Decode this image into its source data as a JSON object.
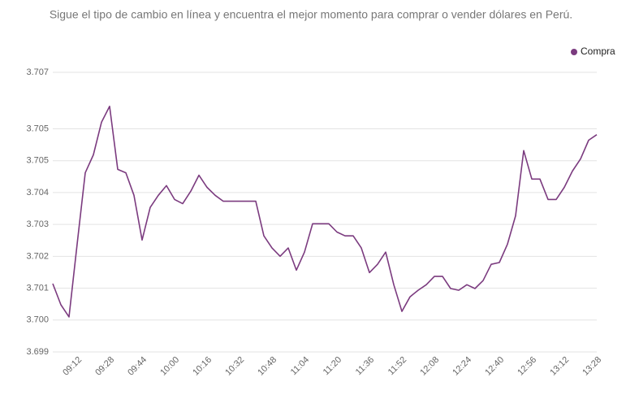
{
  "chart_data": {
    "type": "line",
    "subtitle": "Sigue el tipo de cambio en línea y encuentra el mejor momento para comprar o vender dólares en Perú.",
    "categories": [
      null,
      null,
      null,
      "09:12",
      null,
      null,
      null,
      "09:28",
      null,
      null,
      null,
      "09:44",
      null,
      null,
      null,
      "10:00",
      null,
      null,
      null,
      "10:16",
      null,
      null,
      null,
      "10:32",
      null,
      null,
      null,
      "10:48",
      null,
      null,
      null,
      "11:04",
      null,
      null,
      null,
      "11:20",
      null,
      null,
      null,
      "11:36",
      null,
      null,
      null,
      "11:52",
      null,
      null,
      null,
      "12:08",
      null,
      null,
      null,
      "12:24",
      null,
      null,
      null,
      "12:40",
      null,
      null,
      null,
      "12:56",
      null,
      null,
      null,
      "13:12",
      null,
      null,
      null,
      "13:28"
    ],
    "series": [
      {
        "name": "Compra",
        "color": "#7b3b7f",
        "values": [
          3.70097,
          3.70036,
          3.70001,
          3.70211,
          3.70417,
          3.70469,
          3.70563,
          3.70609,
          3.70427,
          3.70417,
          3.70352,
          3.70223,
          3.70317,
          3.70352,
          3.7038,
          3.7034,
          3.70328,
          3.70364,
          3.7041,
          3.70375,
          3.70352,
          3.70335,
          3.70335,
          3.70335,
          3.70335,
          3.70335,
          3.70235,
          3.702,
          3.70176,
          3.702,
          3.70136,
          3.70188,
          3.7027,
          3.7027,
          3.7027,
          3.70246,
          3.70235,
          3.70235,
          3.702,
          3.70129,
          3.70153,
          3.70188,
          3.70094,
          3.70017,
          3.70059,
          3.70078,
          3.70094,
          3.70118,
          3.70118,
          3.70083,
          3.70078,
          3.70094,
          3.70083,
          3.70106,
          3.70153,
          3.70158,
          3.70211,
          3.70293,
          3.70481,
          3.70399,
          3.70399,
          3.7034,
          3.7034,
          3.70375,
          3.70422,
          3.70457,
          3.70511,
          3.70527
        ]
      }
    ],
    "ylim": [
      3.699,
      3.70707
    ],
    "yticks": [
      {
        "value": 3.699,
        "label": "3.699"
      },
      {
        "value": 3.69992,
        "label": "3.700"
      },
      {
        "value": 3.70084,
        "label": "3.701"
      },
      {
        "value": 3.70176,
        "label": "3.702"
      },
      {
        "value": 3.70268,
        "label": "3.703"
      },
      {
        "value": 3.7036,
        "label": "3.704"
      },
      {
        "value": 3.70452,
        "label": "3.705"
      },
      {
        "value": 3.70544,
        "label": "3.705"
      },
      {
        "value": 3.70707,
        "label": "3.707"
      }
    ],
    "grid": true,
    "legend": "top-right"
  }
}
